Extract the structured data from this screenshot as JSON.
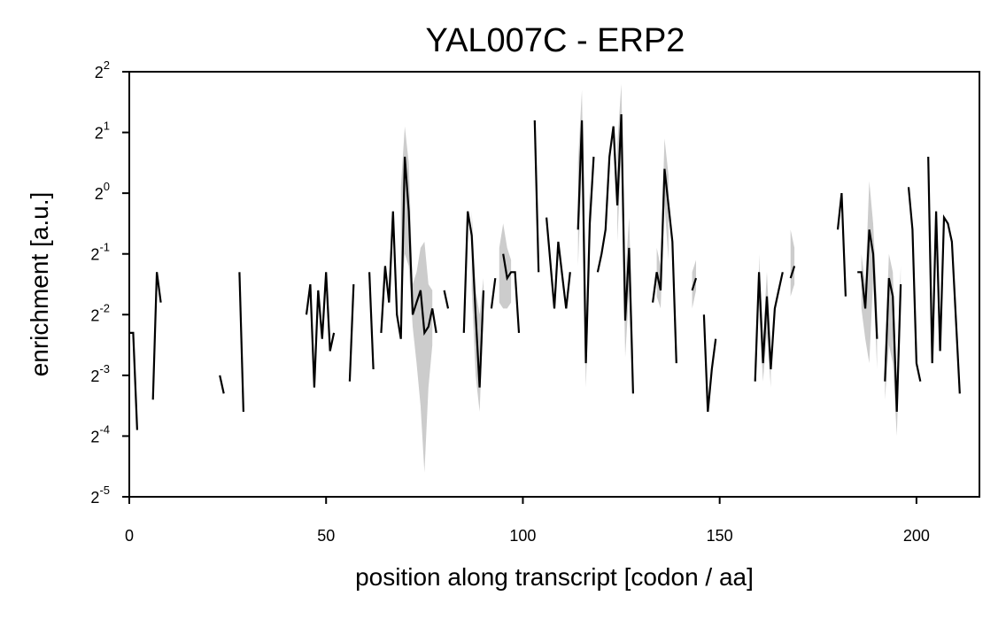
{
  "chart_data": {
    "type": "line",
    "title": "YAL007C - ERP2",
    "xlabel": "position along transcript [codon / aa]",
    "ylabel": "enrichment [a.u.]",
    "y_scale": "log2",
    "xlim": [
      0,
      216
    ],
    "ylim_log2": [
      -5,
      2
    ],
    "grid": false,
    "legend": "none",
    "x_ticks": [
      {
        "value": 0,
        "label": "0"
      },
      {
        "value": 50,
        "label": "50"
      },
      {
        "value": 100,
        "label": "100"
      },
      {
        "value": 150,
        "label": "150"
      },
      {
        "value": 200,
        "label": "200"
      }
    ],
    "y_ticks": [
      {
        "log2": 2,
        "base": "2",
        "exp": "2"
      },
      {
        "log2": 1,
        "base": "2",
        "exp": "1"
      },
      {
        "log2": 0,
        "base": "2",
        "exp": "0"
      },
      {
        "log2": -1,
        "base": "2",
        "exp": "-1"
      },
      {
        "log2": -2,
        "base": "2",
        "exp": "-2"
      },
      {
        "log2": -3,
        "base": "2",
        "exp": "-3"
      },
      {
        "log2": -4,
        "base": "2",
        "exp": "-4"
      },
      {
        "log2": -5,
        "base": "2",
        "exp": "-5"
      }
    ],
    "colors": {
      "line": "#000000",
      "band": "#cccccc"
    },
    "series": [
      {
        "points": [
          [
            0,
            -2.3
          ],
          [
            1,
            -2.3
          ],
          [
            2,
            -3.9
          ]
        ]
      },
      {
        "points": [
          [
            6,
            -3.4
          ],
          [
            7,
            -1.3
          ],
          [
            8,
            -1.8
          ]
        ]
      },
      {
        "points": [
          [
            23,
            -3.0
          ],
          [
            24,
            -3.3
          ]
        ]
      },
      {
        "points": [
          [
            28,
            -1.3
          ],
          [
            29,
            -3.6
          ]
        ]
      },
      {
        "points": [
          [
            45,
            -2.0
          ],
          [
            46,
            -1.5
          ],
          [
            47,
            -3.2
          ],
          [
            48,
            -1.6
          ],
          [
            49,
            -2.4
          ],
          [
            50,
            -1.3
          ],
          [
            51,
            -2.6
          ],
          [
            52,
            -2.3
          ]
        ]
      },
      {
        "points": [
          [
            56,
            -3.1
          ],
          [
            57,
            -1.5
          ]
        ]
      },
      {
        "points": [
          [
            61,
            -1.3
          ],
          [
            62,
            -2.9
          ]
        ]
      },
      {
        "points": [
          [
            64,
            -2.3
          ],
          [
            65,
            -1.2
          ],
          [
            66,
            -1.8
          ],
          [
            67,
            -0.3
          ],
          [
            68,
            -2.0
          ],
          [
            69,
            -2.4
          ],
          [
            70,
            0.6
          ],
          [
            71,
            -0.3
          ],
          [
            72,
            -2.0
          ],
          [
            73,
            -1.8
          ],
          [
            74,
            -1.6
          ],
          [
            75,
            -2.3
          ],
          [
            76,
            -2.2
          ],
          [
            77,
            -1.9
          ],
          [
            78,
            -2.3
          ]
        ]
      },
      {
        "points": [
          [
            80,
            -1.6
          ],
          [
            81,
            -1.9
          ]
        ]
      },
      {
        "points": [
          [
            85,
            -2.3
          ],
          [
            86,
            -0.3
          ],
          [
            87,
            -0.7
          ],
          [
            88,
            -2.0
          ],
          [
            89,
            -3.2
          ],
          [
            90,
            -1.6
          ]
        ]
      },
      {
        "points": [
          [
            92,
            -1.9
          ],
          [
            93,
            -1.4
          ]
        ]
      },
      {
        "points": [
          [
            95,
            -1.0
          ],
          [
            96,
            -1.4
          ],
          [
            97,
            -1.3
          ],
          [
            98,
            -1.3
          ],
          [
            99,
            -2.3
          ]
        ]
      },
      {
        "points": [
          [
            103,
            1.2
          ],
          [
            104,
            -1.3
          ]
        ]
      },
      {
        "points": [
          [
            106,
            -0.4
          ],
          [
            108,
            -1.9
          ],
          [
            109,
            -0.8
          ],
          [
            111,
            -1.9
          ],
          [
            112,
            -1.3
          ]
        ]
      },
      {
        "points": [
          [
            114,
            -0.6
          ],
          [
            115,
            1.2
          ],
          [
            116,
            -2.8
          ],
          [
            117,
            -0.5
          ],
          [
            118,
            0.6
          ]
        ]
      },
      {
        "points": [
          [
            119,
            -1.3
          ],
          [
            120,
            -1.0
          ],
          [
            121,
            -0.6
          ],
          [
            122,
            0.6
          ],
          [
            123,
            1.1
          ],
          [
            124,
            -0.2
          ],
          [
            125,
            1.3
          ],
          [
            126,
            -2.1
          ],
          [
            127,
            -0.9
          ],
          [
            128,
            -3.3
          ]
        ]
      },
      {
        "points": [
          [
            133,
            -1.8
          ],
          [
            134,
            -1.3
          ],
          [
            135,
            -1.6
          ],
          [
            136,
            0.4
          ],
          [
            137,
            -0.2
          ],
          [
            138,
            -0.8
          ],
          [
            139,
            -2.8
          ]
        ]
      },
      {
        "points": [
          [
            143,
            -1.6
          ],
          [
            144,
            -1.4
          ]
        ]
      },
      {
        "points": [
          [
            146,
            -2.0
          ],
          [
            147,
            -3.6
          ],
          [
            148,
            -2.9
          ],
          [
            149,
            -2.4
          ]
        ]
      },
      {
        "points": [
          [
            159,
            -3.1
          ],
          [
            160,
            -1.3
          ],
          [
            161,
            -2.8
          ],
          [
            162,
            -1.7
          ],
          [
            163,
            -2.9
          ],
          [
            164,
            -1.9
          ],
          [
            165,
            -1.6
          ],
          [
            166,
            -1.3
          ]
        ]
      },
      {
        "points": [
          [
            168,
            -1.4
          ],
          [
            169,
            -1.2
          ]
        ]
      },
      {
        "points": [
          [
            180,
            -0.6
          ],
          [
            181,
            0.0
          ],
          [
            182,
            -1.7
          ]
        ]
      },
      {
        "points": [
          [
            185,
            -1.3
          ],
          [
            186,
            -1.3
          ],
          [
            187,
            -1.9
          ],
          [
            188,
            -0.6
          ],
          [
            189,
            -1.0
          ],
          [
            190,
            -2.4
          ]
        ]
      },
      {
        "points": [
          [
            192,
            -3.1
          ],
          [
            193,
            -1.4
          ],
          [
            194,
            -1.7
          ],
          [
            195,
            -3.6
          ],
          [
            196,
            -1.5
          ]
        ]
      },
      {
        "points": [
          [
            198,
            0.1
          ],
          [
            199,
            -0.6
          ],
          [
            200,
            -2.8
          ],
          [
            201,
            -3.1
          ]
        ]
      },
      {
        "points": [
          [
            203,
            0.6
          ],
          [
            204,
            -2.8
          ],
          [
            205,
            -0.3
          ],
          [
            206,
            -2.6
          ],
          [
            207,
            -0.4
          ],
          [
            208,
            -0.5
          ],
          [
            209,
            -0.8
          ],
          [
            211,
            -3.3
          ]
        ]
      }
    ],
    "bands": [
      {
        "points": [
          [
            69,
            -1.8,
            0.1
          ],
          [
            70,
            -1.0,
            1.1
          ],
          [
            71,
            -1.2,
            0.5
          ],
          [
            72,
            -2.2,
            -1.5
          ],
          [
            73,
            -2.8,
            -1.3
          ],
          [
            74,
            -3.5,
            -0.9
          ],
          [
            75,
            -4.6,
            -0.8
          ],
          [
            76,
            -3.2,
            -1.5
          ],
          [
            77,
            -2.5,
            -1.6
          ]
        ]
      },
      {
        "points": [
          [
            87,
            -1.6,
            -0.3
          ],
          [
            88,
            -3.0,
            -1.6
          ],
          [
            89,
            -3.6,
            -2.0
          ],
          [
            90,
            -2.0,
            -1.4
          ]
        ]
      },
      {
        "points": [
          [
            94,
            -1.8,
            -0.9
          ],
          [
            95,
            -1.9,
            -0.5
          ],
          [
            96,
            -1.9,
            -0.9
          ],
          [
            97,
            -1.8,
            -1.1
          ]
        ]
      },
      {
        "points": [
          [
            114,
            -1.2,
            0.5
          ],
          [
            115,
            0.4,
            1.7
          ],
          [
            116,
            -3.2,
            -2.2
          ],
          [
            117,
            -1.2,
            0.2
          ]
        ]
      },
      {
        "points": [
          [
            124,
            -0.8,
            0.8
          ],
          [
            125,
            0.7,
            1.8
          ],
          [
            126,
            -2.7,
            -1.4
          ],
          [
            127,
            -1.6,
            -0.4
          ],
          [
            128,
            -3.4,
            -2.6
          ]
        ]
      },
      {
        "points": [
          [
            134,
            -1.7,
            -0.9
          ],
          [
            135,
            -1.9,
            -1.2
          ],
          [
            136,
            -0.2,
            0.9
          ],
          [
            137,
            -1.1,
            0.3
          ]
        ]
      },
      {
        "points": [
          [
            143,
            -1.9,
            -1.3
          ],
          [
            144,
            -1.6,
            -1.1
          ]
        ]
      },
      {
        "points": [
          [
            160,
            -1.9,
            -1.0
          ],
          [
            161,
            -3.1,
            -2.4
          ],
          [
            162,
            -2.3,
            -1.3
          ],
          [
            163,
            -3.2,
            -2.6
          ]
        ]
      },
      {
        "points": [
          [
            168,
            -1.7,
            -0.6
          ],
          [
            169,
            -1.5,
            -0.9
          ]
        ]
      },
      {
        "points": [
          [
            186,
            -1.9,
            -1.0
          ],
          [
            187,
            -2.4,
            -1.5
          ],
          [
            188,
            -2.8,
            0.2
          ],
          [
            189,
            -1.4,
            -0.5
          ],
          [
            190,
            -2.9,
            -1.8
          ]
        ]
      },
      {
        "points": [
          [
            192,
            -3.4,
            -2.7
          ],
          [
            193,
            -2.5,
            -1.0
          ],
          [
            194,
            -2.8,
            -1.3
          ],
          [
            195,
            -4.0,
            -3.1
          ],
          [
            196,
            -2.0,
            -1.2
          ]
        ]
      }
    ]
  }
}
